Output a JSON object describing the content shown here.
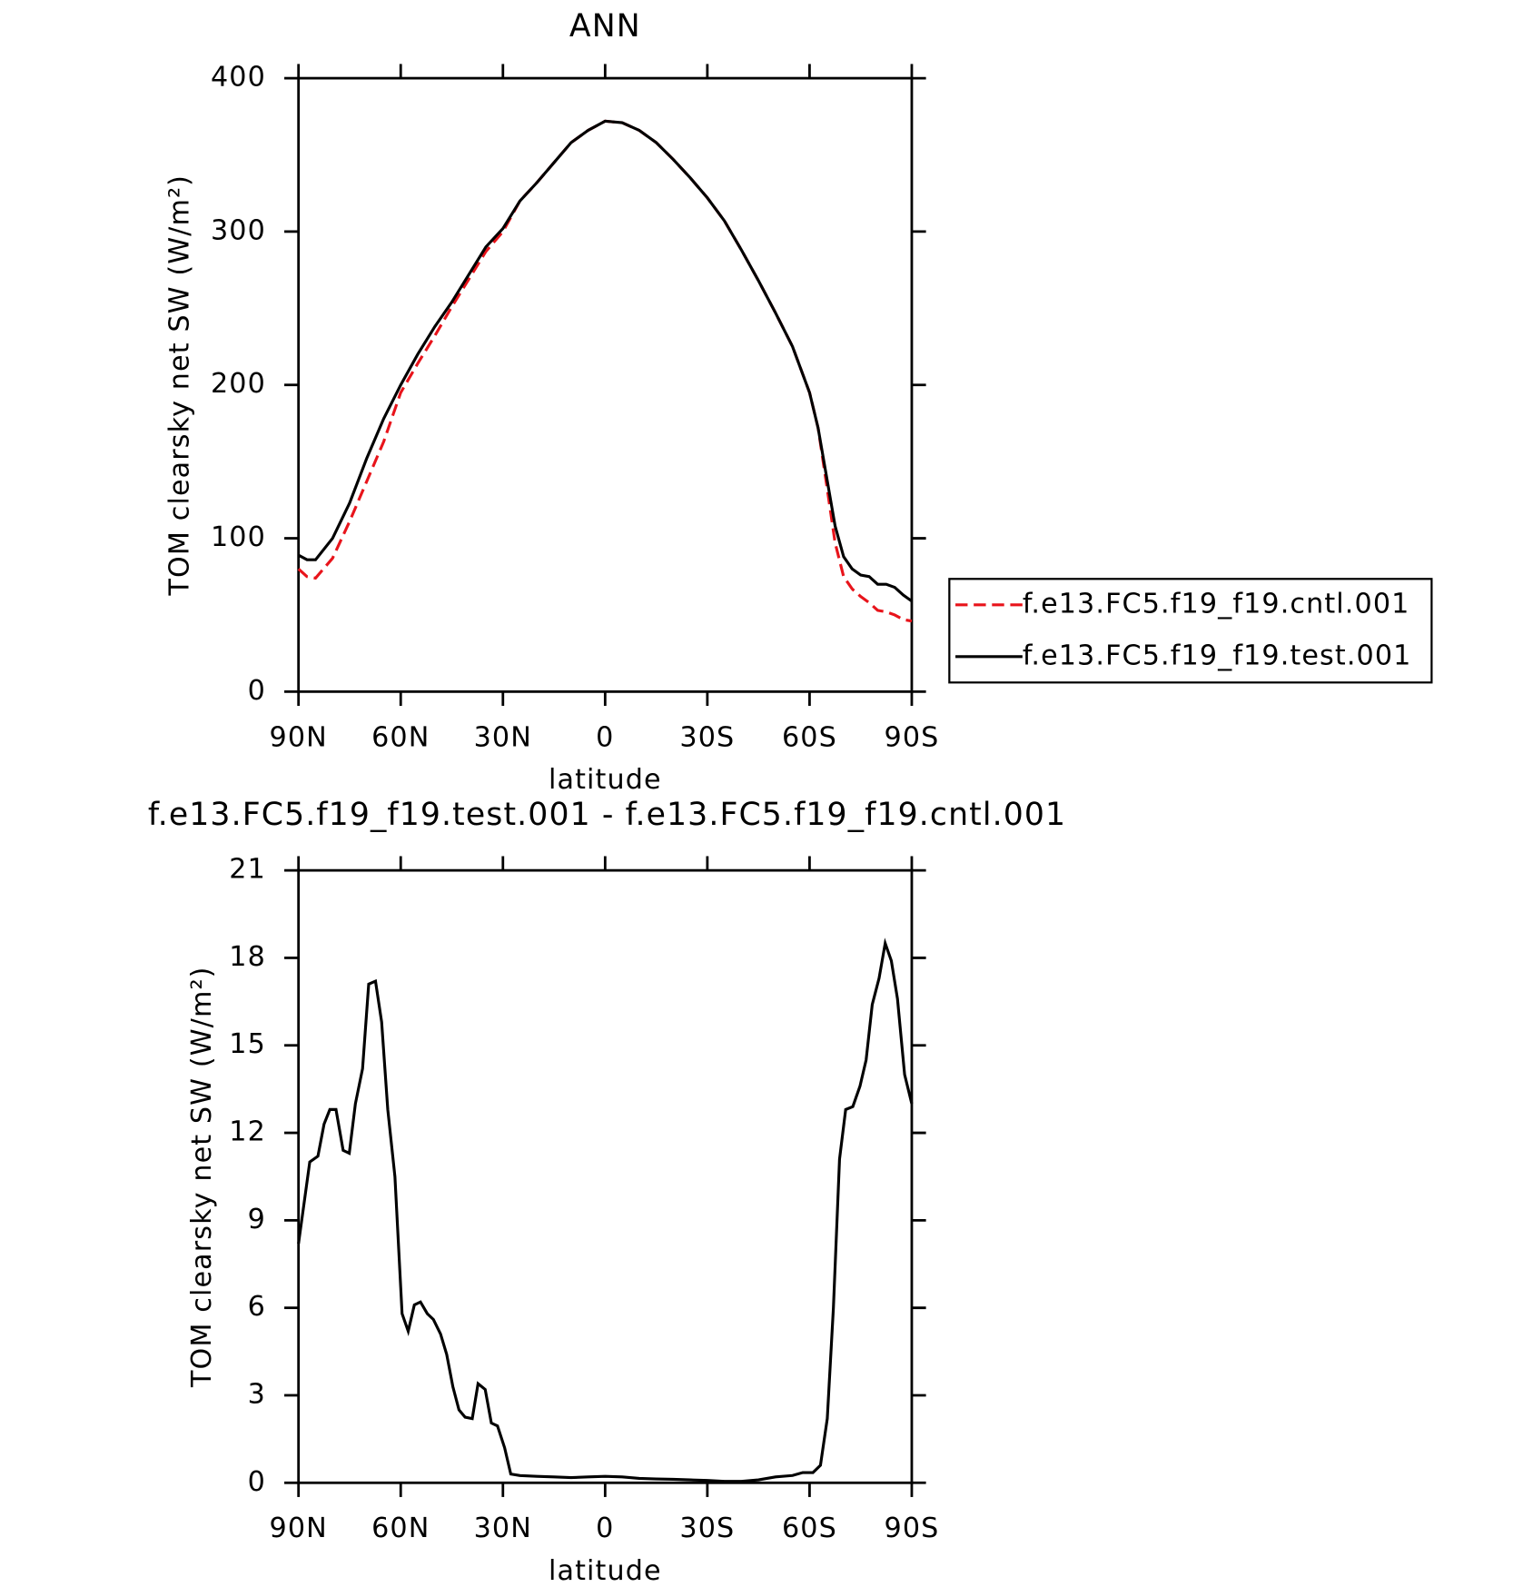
{
  "chart_data": [
    {
      "type": "line",
      "title": "ANN",
      "xlabel": "latitude",
      "ylabel": "TOM clearsky net SW (W/m²)",
      "x": [
        90,
        87.5,
        85,
        80,
        75,
        70,
        65,
        60,
        55,
        50,
        45,
        40,
        35,
        30,
        25,
        20,
        15,
        10,
        5,
        0,
        -5,
        -10,
        -15,
        -20,
        -25,
        -30,
        -35,
        -40,
        -45,
        -50,
        -55,
        -60,
        -62.5,
        -65,
        -67.5,
        -70,
        -72.5,
        -75,
        -77.5,
        -80,
        -82.5,
        -85,
        -87.5,
        -90
      ],
      "series": [
        {
          "name": "f.e13.FC5.f19_f19.cntl.001",
          "color": "#e8141b",
          "dash": true,
          "values": [
            80,
            75,
            74,
            87,
            111,
            137,
            163,
            195,
            214,
            232,
            251,
            269,
            287,
            300,
            320,
            332,
            345,
            358,
            366,
            372,
            371,
            366,
            358,
            347,
            335,
            322,
            307,
            288,
            268,
            247,
            225,
            195,
            172,
            135,
            97,
            75,
            67,
            62,
            58,
            53,
            52,
            50,
            47,
            46
          ]
        },
        {
          "name": "f.e13.FC5.f19_f19.test.001",
          "color": "#000000",
          "dash": false,
          "values": [
            89,
            86,
            86,
            100,
            123,
            152,
            178,
            200,
            220,
            238,
            254,
            272,
            290,
            302,
            320,
            332,
            345,
            358,
            366,
            372,
            371,
            366,
            358,
            347,
            335,
            322,
            307,
            288,
            268,
            247,
            225,
            195,
            172,
            140,
            108,
            88,
            80,
            76,
            75,
            70,
            70,
            68,
            63,
            59
          ]
        }
      ],
      "xlim": [
        90,
        -90
      ],
      "xticks": [
        {
          "value": 90,
          "label": "90N"
        },
        {
          "value": 60,
          "label": "60N"
        },
        {
          "value": 30,
          "label": "30N"
        },
        0,
        {
          "value": -30,
          "label": "30S"
        },
        {
          "value": -60,
          "label": "60S"
        },
        {
          "value": -90,
          "label": "90S"
        }
      ],
      "ylim": [
        0,
        400
      ],
      "yticks": [
        0,
        100,
        200,
        300,
        400
      ],
      "legend": "right"
    },
    {
      "type": "line",
      "title": "f.e13.FC5.f19_f19.test.001 - f.e13.FC5.f19_f19.cntl.001",
      "xlabel": "latitude",
      "ylabel": "TOM clearsky net SW (W/m²)",
      "x": [
        90,
        86.7,
        84.3,
        82.5,
        80.8,
        79,
        76.9,
        75.1,
        73.3,
        71.2,
        69.4,
        67.4,
        65.6,
        63.8,
        61.7,
        59.6,
        57.8,
        56,
        54.2,
        52.2,
        50.4,
        48.3,
        46.5,
        44.7,
        42.9,
        41.1,
        39,
        37.3,
        35.2,
        33.4,
        31.6,
        29.5,
        27.7,
        25,
        20,
        15,
        10,
        5,
        0,
        -5,
        -10,
        -15,
        -20,
        -25,
        -30,
        -35,
        -40,
        -45,
        -50,
        -55,
        -58,
        -61,
        -63.2,
        -65.2,
        -67,
        -68.8,
        -70.6,
        -72.7,
        -74.8,
        -76.6,
        -78.4,
        -80.4,
        -82.2,
        -84,
        -85.8,
        -87.9,
        -90
      ],
      "series": [
        {
          "color": "#000000",
          "dash": false,
          "values": [
            8.2,
            11,
            11.2,
            12.3,
            12.8,
            12.8,
            11.4,
            11.3,
            13,
            14.2,
            17.1,
            17.2,
            15.8,
            12.8,
            10.5,
            5.8,
            5.2,
            6.1,
            6.2,
            5.8,
            5.6,
            5.1,
            4.4,
            3.3,
            2.5,
            2.25,
            2.2,
            3.4,
            3.2,
            2.05,
            1.95,
            1.2,
            0.3,
            0.25,
            0.22,
            0.2,
            0.18,
            0.2,
            0.22,
            0.2,
            0.15,
            0.13,
            0.12,
            0.1,
            0.08,
            0.05,
            0.05,
            0.1,
            0.2,
            0.25,
            0.35,
            0.35,
            0.6,
            2.2,
            6,
            11.1,
            12.8,
            12.9,
            13.6,
            14.5,
            16.4,
            17.3,
            18.5,
            17.9,
            16.6,
            14,
            13
          ]
        }
      ],
      "xlim": [
        90,
        -90
      ],
      "xticks": [
        {
          "value": 90,
          "label": "90N"
        },
        {
          "value": 60,
          "label": "60N"
        },
        {
          "value": 30,
          "label": "30N"
        },
        0,
        {
          "value": -30,
          "label": "30S"
        },
        {
          "value": -60,
          "label": "60S"
        },
        {
          "value": -90,
          "label": "90S"
        }
      ],
      "ylim": [
        0,
        21
      ],
      "yticks": [
        0,
        3,
        6,
        9,
        12,
        15,
        18,
        21
      ]
    }
  ]
}
